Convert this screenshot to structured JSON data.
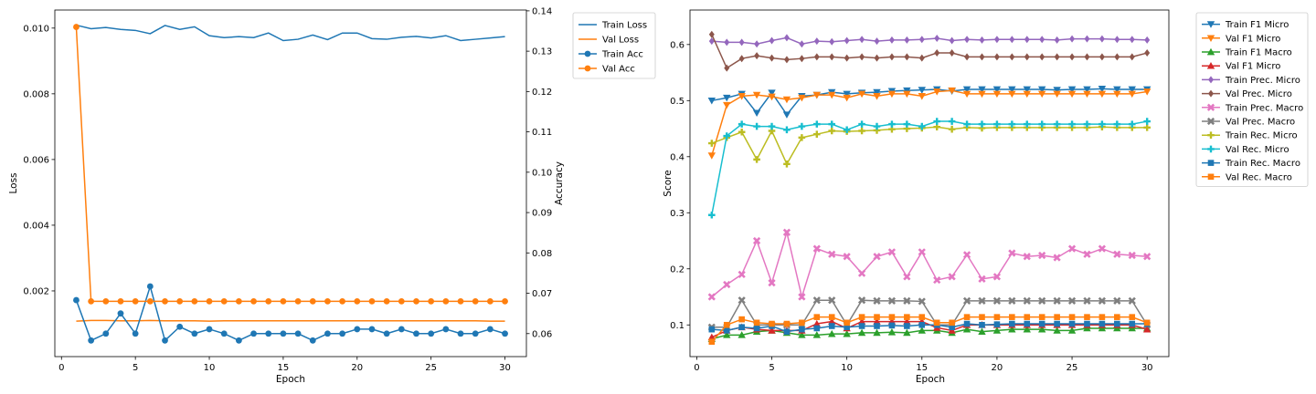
{
  "figure": {
    "left_chart": {
      "type": "line",
      "xlabel": "Epoch",
      "ylabel_left": "Loss",
      "ylabel_right": "Accuracy",
      "xlim": [
        -0.45,
        31.45
      ],
      "xticks": [
        0,
        5,
        10,
        15,
        20,
        25,
        30
      ],
      "y_left_lim": [
        0.0,
        0.01055
      ],
      "y_left_ticks": [
        "0.002",
        "0.004",
        "0.006",
        "0.008",
        "0.010"
      ],
      "y_left_tick_values": [
        0.002,
        0.004,
        0.006,
        0.008,
        0.01
      ],
      "y_right_lim": [
        0.0543,
        0.1402
      ],
      "y_right_ticks": [
        "0.06",
        "0.07",
        "0.08",
        "0.09",
        "0.10",
        "0.11",
        "0.12",
        "0.13",
        "0.14"
      ],
      "y_right_tick_values": [
        0.06,
        0.07,
        0.08,
        0.09,
        0.1,
        0.11,
        0.12,
        0.13,
        0.14
      ],
      "legend_position": "outside-top-right",
      "x": [
        1,
        2,
        3,
        4,
        5,
        6,
        7,
        8,
        9,
        10,
        11,
        12,
        13,
        14,
        15,
        16,
        17,
        18,
        19,
        20,
        21,
        22,
        23,
        24,
        25,
        26,
        27,
        28,
        29,
        30
      ],
      "series": [
        {
          "name": "Train Loss",
          "axis": "left",
          "color": "#1f77b4",
          "marker": "none",
          "values": [
            0.01009,
            0.00998,
            0.01002,
            0.00996,
            0.00993,
            0.00983,
            0.01008,
            0.00996,
            0.01004,
            0.00977,
            0.00971,
            0.00974,
            0.00971,
            0.00985,
            0.00962,
            0.00966,
            0.00979,
            0.00965,
            0.00985,
            0.00985,
            0.00968,
            0.00966,
            0.00972,
            0.00975,
            0.0097,
            0.00977,
            0.00962,
            0.00966,
            0.0097,
            0.00974
          ]
        },
        {
          "name": "Val Loss",
          "axis": "left",
          "color": "#ff7f0e",
          "marker": "none",
          "values": [
            0.00108,
            0.0011,
            0.0011,
            0.00109,
            0.00109,
            0.0011,
            0.00109,
            0.00109,
            0.00109,
            0.00108,
            0.00109,
            0.00109,
            0.00109,
            0.00109,
            0.00109,
            0.00109,
            0.00109,
            0.00109,
            0.00109,
            0.00109,
            0.00109,
            0.00109,
            0.00109,
            0.00109,
            0.00109,
            0.00109,
            0.00109,
            0.00109,
            0.00108,
            0.00108
          ]
        },
        {
          "name": "Train Acc",
          "axis": "right",
          "color": "#1f77b4",
          "marker": "circle",
          "values": [
            0.0683,
            0.0583,
            0.06,
            0.065,
            0.06,
            0.0717,
            0.0583,
            0.0617,
            0.06,
            0.0611,
            0.06,
            0.0583,
            0.06,
            0.06,
            0.06,
            0.06,
            0.0583,
            0.06,
            0.06,
            0.0611,
            0.0611,
            0.06,
            0.0611,
            0.06,
            0.06,
            0.0611,
            0.06,
            0.06,
            0.0611,
            0.06
          ]
        },
        {
          "name": "Val Acc",
          "axis": "right",
          "color": "#ff7f0e",
          "marker": "circle",
          "values": [
            0.136,
            0.068,
            0.068,
            0.068,
            0.068,
            0.068,
            0.068,
            0.068,
            0.068,
            0.068,
            0.068,
            0.068,
            0.068,
            0.068,
            0.068,
            0.068,
            0.068,
            0.068,
            0.068,
            0.068,
            0.068,
            0.068,
            0.068,
            0.068,
            0.068,
            0.068,
            0.068,
            0.068,
            0.068,
            0.068
          ]
        }
      ]
    },
    "right_chart": {
      "type": "line",
      "xlabel": "Epoch",
      "ylabel": "Score",
      "xlim": [
        -0.45,
        31.45
      ],
      "xticks": [
        0,
        5,
        10,
        15,
        20,
        25,
        30
      ],
      "ylim": [
        0.0435,
        0.6615
      ],
      "yticks": [
        "0.1",
        "0.2",
        "0.3",
        "0.4",
        "0.5",
        "0.6"
      ],
      "ytick_values": [
        0.1,
        0.2,
        0.3,
        0.4,
        0.5,
        0.6
      ],
      "legend_position": "outside-top-right",
      "x": [
        1,
        2,
        3,
        4,
        5,
        6,
        7,
        8,
        9,
        10,
        11,
        12,
        13,
        14,
        15,
        16,
        17,
        18,
        19,
        20,
        21,
        22,
        23,
        24,
        25,
        26,
        27,
        28,
        29,
        30
      ],
      "series": [
        {
          "name": "Train F1 Micro",
          "color": "#1f77b4",
          "marker": "triangle-down",
          "values": [
            0.5,
            0.505,
            0.512,
            0.478,
            0.514,
            0.475,
            0.508,
            0.51,
            0.515,
            0.512,
            0.514,
            0.515,
            0.517,
            0.518,
            0.519,
            0.52,
            0.517,
            0.52,
            0.52,
            0.52,
            0.52,
            0.52,
            0.52,
            0.519,
            0.52,
            0.52,
            0.521,
            0.52,
            0.52,
            0.52
          ]
        },
        {
          "name": "Val F1 Micro",
          "color": "#ff7f0e",
          "marker": "triangle-down",
          "values": [
            0.402,
            0.492,
            0.508,
            0.51,
            0.507,
            0.502,
            0.505,
            0.51,
            0.51,
            0.505,
            0.512,
            0.508,
            0.512,
            0.512,
            0.508,
            0.516,
            0.518,
            0.512,
            0.512,
            0.512,
            0.512,
            0.512,
            0.512,
            0.512,
            0.512,
            0.512,
            0.512,
            0.512,
            0.512,
            0.516
          ]
        },
        {
          "name": "Train F1 Macro",
          "color": "#2ca02c",
          "marker": "triangle-up",
          "values": [
            0.075,
            0.082,
            0.082,
            0.088,
            0.09,
            0.086,
            0.082,
            0.082,
            0.084,
            0.084,
            0.086,
            0.086,
            0.087,
            0.086,
            0.09,
            0.09,
            0.086,
            0.092,
            0.088,
            0.09,
            0.092,
            0.092,
            0.092,
            0.09,
            0.09,
            0.094,
            0.094,
            0.094,
            0.094,
            0.094
          ]
        },
        {
          "name": "Val F1 Micro",
          "color": "#d62728",
          "marker": "triangle-up",
          "values": [
            0.078,
            0.09,
            0.096,
            0.092,
            0.09,
            0.09,
            0.09,
            0.102,
            0.106,
            0.094,
            0.106,
            0.106,
            0.106,
            0.106,
            0.106,
            0.095,
            0.09,
            0.1,
            0.1,
            0.1,
            0.1,
            0.1,
            0.1,
            0.1,
            0.1,
            0.1,
            0.1,
            0.1,
            0.1,
            0.092
          ]
        },
        {
          "name": "Train Prec. Micro",
          "color": "#9467bd",
          "marker": "diamond",
          "values": [
            0.606,
            0.604,
            0.604,
            0.601,
            0.607,
            0.612,
            0.601,
            0.606,
            0.605,
            0.607,
            0.609,
            0.606,
            0.608,
            0.608,
            0.609,
            0.611,
            0.607,
            0.609,
            0.608,
            0.609,
            0.609,
            0.609,
            0.609,
            0.608,
            0.61,
            0.61,
            0.61,
            0.609,
            0.609,
            0.608
          ]
        },
        {
          "name": "Val Prec. Micro",
          "color": "#8c564b",
          "marker": "diamond",
          "values": [
            0.618,
            0.558,
            0.575,
            0.58,
            0.576,
            0.573,
            0.575,
            0.578,
            0.578,
            0.576,
            0.578,
            0.576,
            0.578,
            0.578,
            0.576,
            0.585,
            0.585,
            0.578,
            0.578,
            0.578,
            0.578,
            0.578,
            0.578,
            0.578,
            0.578,
            0.578,
            0.578,
            0.578,
            0.578,
            0.585
          ]
        },
        {
          "name": "Train Prec. Macro",
          "color": "#e377c2",
          "marker": "x",
          "values": [
            0.15,
            0.172,
            0.19,
            0.25,
            0.175,
            0.265,
            0.15,
            0.236,
            0.226,
            0.222,
            0.192,
            0.222,
            0.23,
            0.186,
            0.23,
            0.18,
            0.186,
            0.225,
            0.182,
            0.186,
            0.228,
            0.222,
            0.224,
            0.22,
            0.236,
            0.226,
            0.236,
            0.226,
            0.224,
            0.222
          ]
        },
        {
          "name": "Val Prec. Macro",
          "color": "#7f7f7f",
          "marker": "x",
          "values": [
            0.096,
            0.096,
            0.144,
            0.1,
            0.1,
            0.1,
            0.1,
            0.144,
            0.144,
            0.1,
            0.144,
            0.143,
            0.143,
            0.143,
            0.142,
            0.1,
            0.1,
            0.143,
            0.143,
            0.143,
            0.143,
            0.143,
            0.143,
            0.143,
            0.143,
            0.143,
            0.143,
            0.143,
            0.143,
            0.1
          ]
        },
        {
          "name": "Train Rec. Micro",
          "color": "#bcbd22",
          "marker": "plus",
          "values": [
            0.424,
            0.434,
            0.444,
            0.395,
            0.446,
            0.387,
            0.434,
            0.44,
            0.446,
            0.445,
            0.446,
            0.447,
            0.449,
            0.45,
            0.451,
            0.453,
            0.449,
            0.452,
            0.451,
            0.452,
            0.452,
            0.452,
            0.452,
            0.452,
            0.452,
            0.452,
            0.453,
            0.452,
            0.452,
            0.452
          ]
        },
        {
          "name": "Val Rec. Micro",
          "color": "#17becf",
          "marker": "plus",
          "values": [
            0.296,
            0.437,
            0.458,
            0.454,
            0.454,
            0.448,
            0.454,
            0.458,
            0.458,
            0.448,
            0.458,
            0.454,
            0.458,
            0.458,
            0.454,
            0.463,
            0.463,
            0.458,
            0.458,
            0.458,
            0.458,
            0.458,
            0.458,
            0.458,
            0.458,
            0.458,
            0.458,
            0.458,
            0.458,
            0.463
          ]
        },
        {
          "name": "Train Rec. Macro",
          "color": "#1f77b4",
          "marker": "square",
          "values": [
            0.092,
            0.09,
            0.096,
            0.094,
            0.098,
            0.088,
            0.092,
            0.094,
            0.098,
            0.096,
            0.098,
            0.098,
            0.099,
            0.098,
            0.1,
            0.1,
            0.096,
            0.102,
            0.1,
            0.101,
            0.102,
            0.102,
            0.102,
            0.102,
            0.102,
            0.102,
            0.102,
            0.102,
            0.102,
            0.102
          ]
        },
        {
          "name": "Val Rec. Macro",
          "color": "#ff7f0e",
          "marker": "square",
          "values": [
            0.07,
            0.1,
            0.11,
            0.104,
            0.102,
            0.102,
            0.104,
            0.114,
            0.114,
            0.104,
            0.114,
            0.114,
            0.114,
            0.114,
            0.114,
            0.104,
            0.104,
            0.114,
            0.114,
            0.114,
            0.114,
            0.114,
            0.114,
            0.114,
            0.114,
            0.114,
            0.114,
            0.114,
            0.114,
            0.104
          ]
        }
      ]
    }
  }
}
